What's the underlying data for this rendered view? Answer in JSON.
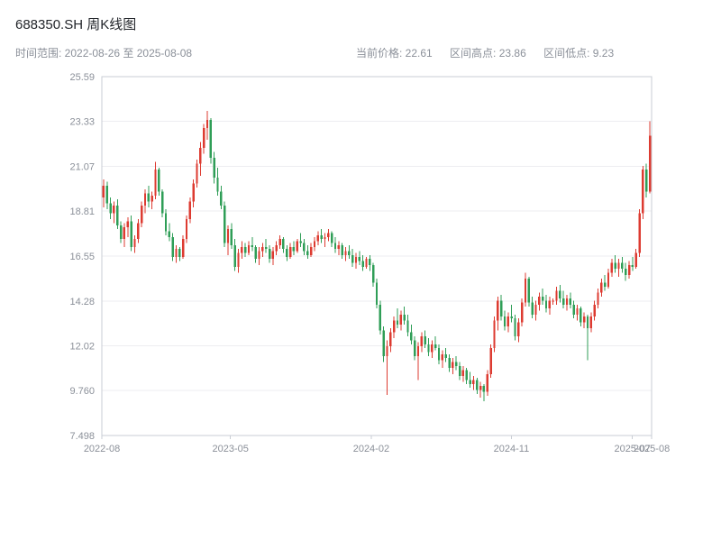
{
  "header": {
    "title": "688350.SH 周K线图",
    "time_range": "时间范围: 2022-08-26 至 2025-08-08",
    "stats": {
      "current": "当前价格: 22.61",
      "high": "区间高点: 23.86",
      "low": "区间低点: 9.23"
    }
  },
  "chart_data": {
    "type": "candlestick",
    "symbol": "688350.SH",
    "period_label": "周K线图",
    "date_start": "2022-08-26",
    "date_end": "2025-08-08",
    "current_price": 22.61,
    "range_high": 23.86,
    "range_low": 9.23,
    "up_color": "#dd3b31",
    "down_color": "#2f9e57",
    "grid_color": "#ededf1",
    "border_color": "#c9cdd4",
    "label_color": "#8b9099",
    "ylim": [
      7.498,
      25.59
    ],
    "y_ticks": [
      7.498,
      9.76,
      12.02,
      14.28,
      16.55,
      18.81,
      21.07,
      23.33,
      25.59
    ],
    "y_tick_labels": [
      "7.498",
      "9.760",
      "12.02",
      "14.28",
      "16.55",
      "18.81",
      "21.07",
      "23.33",
      "25.59"
    ],
    "x_ticks": [
      {
        "label": "2022-08",
        "f": 0.0
      },
      {
        "label": "2023-05",
        "f": 0.234
      },
      {
        "label": "2024-02",
        "f": 0.49
      },
      {
        "label": "2024-11",
        "f": 0.745
      },
      {
        "label": "2025-07",
        "f": 0.965
      },
      {
        "label": "2025-08",
        "f": 1.0
      }
    ],
    "candles": [
      [
        19.5,
        20.4,
        19.0,
        20.1
      ],
      [
        20.1,
        20.3,
        18.9,
        19.2
      ],
      [
        19.2,
        19.5,
        18.4,
        18.7
      ],
      [
        18.7,
        19.3,
        18.2,
        19.1
      ],
      [
        19.1,
        19.4,
        17.9,
        18.1
      ],
      [
        18.1,
        18.3,
        17.2,
        17.4
      ],
      [
        17.4,
        18.2,
        17.0,
        18.0
      ],
      [
        18.0,
        18.5,
        17.5,
        18.3
      ],
      [
        18.3,
        18.6,
        16.8,
        17.0
      ],
      [
        17.0,
        17.6,
        16.7,
        17.4
      ],
      [
        17.4,
        18.4,
        17.2,
        18.2
      ],
      [
        18.2,
        19.3,
        18.0,
        19.1
      ],
      [
        19.1,
        19.9,
        18.7,
        19.7
      ],
      [
        19.7,
        20.1,
        19.0,
        19.3
      ],
      [
        19.3,
        19.8,
        18.9,
        19.6
      ],
      [
        19.6,
        21.3,
        19.4,
        20.9
      ],
      [
        20.9,
        21.0,
        19.6,
        19.8
      ],
      [
        19.8,
        19.9,
        18.5,
        18.7
      ],
      [
        18.7,
        18.9,
        17.6,
        17.8
      ],
      [
        17.8,
        18.2,
        17.3,
        17.5
      ],
      [
        17.5,
        17.7,
        16.3,
        16.5
      ],
      [
        16.5,
        17.1,
        16.2,
        16.9
      ],
      [
        16.9,
        17.0,
        16.3,
        16.5
      ],
      [
        16.5,
        17.6,
        16.4,
        17.4
      ],
      [
        17.4,
        18.6,
        17.2,
        18.4
      ],
      [
        18.4,
        19.5,
        18.2,
        19.3
      ],
      [
        19.3,
        20.4,
        19.0,
        20.2
      ],
      [
        20.2,
        21.4,
        20.0,
        21.2
      ],
      [
        21.2,
        22.3,
        20.6,
        22.0
      ],
      [
        22.0,
        23.2,
        21.7,
        23.0
      ],
      [
        23.0,
        23.86,
        22.4,
        23.4
      ],
      [
        23.4,
        23.5,
        21.2,
        21.5
      ],
      [
        21.5,
        21.8,
        20.2,
        20.5
      ],
      [
        20.5,
        21.0,
        19.6,
        19.8
      ],
      [
        19.8,
        20.1,
        18.9,
        19.1
      ],
      [
        19.1,
        19.3,
        17.0,
        17.2
      ],
      [
        17.2,
        18.1,
        16.6,
        17.9
      ],
      [
        17.9,
        18.2,
        16.9,
        17.1
      ],
      [
        17.1,
        17.4,
        15.8,
        16.0
      ],
      [
        16.0,
        16.9,
        15.7,
        16.7
      ],
      [
        16.7,
        17.3,
        16.4,
        17.0
      ],
      [
        17.0,
        17.2,
        16.5,
        16.7
      ],
      [
        16.7,
        17.3,
        16.6,
        17.1
      ],
      [
        17.1,
        17.5,
        16.8,
        17.0
      ],
      [
        17.0,
        17.1,
        16.2,
        16.4
      ],
      [
        16.4,
        17.0,
        16.1,
        16.8
      ],
      [
        16.8,
        17.2,
        16.5,
        17.0
      ],
      [
        17.0,
        17.4,
        16.7,
        16.9
      ],
      [
        16.9,
        17.1,
        16.2,
        16.4
      ],
      [
        16.4,
        17.0,
        16.1,
        16.8
      ],
      [
        16.8,
        17.3,
        16.6,
        17.1
      ],
      [
        17.1,
        17.6,
        16.9,
        17.4
      ],
      [
        17.4,
        17.5,
        16.7,
        16.9
      ],
      [
        16.9,
        17.1,
        16.3,
        16.5
      ],
      [
        16.5,
        17.2,
        16.4,
        17.0
      ],
      [
        17.0,
        17.3,
        16.6,
        16.8
      ],
      [
        16.8,
        17.4,
        16.7,
        17.3
      ],
      [
        17.3,
        17.7,
        17.0,
        17.2
      ],
      [
        17.2,
        17.4,
        16.6,
        16.8
      ],
      [
        16.8,
        17.1,
        16.4,
        16.6
      ],
      [
        16.6,
        17.2,
        16.5,
        17.0
      ],
      [
        17.0,
        17.5,
        16.8,
        17.3
      ],
      [
        17.3,
        17.8,
        17.1,
        17.6
      ],
      [
        17.6,
        17.9,
        17.2,
        17.4
      ],
      [
        17.4,
        17.7,
        17.0,
        17.5
      ],
      [
        17.5,
        17.9,
        17.3,
        17.7
      ],
      [
        17.7,
        17.8,
        17.0,
        17.2
      ],
      [
        17.2,
        17.5,
        16.7,
        16.9
      ],
      [
        16.9,
        17.3,
        16.6,
        17.1
      ],
      [
        17.1,
        17.2,
        16.4,
        16.6
      ],
      [
        16.6,
        17.0,
        16.3,
        16.8
      ],
      [
        16.8,
        17.1,
        16.4,
        16.6
      ],
      [
        16.6,
        16.9,
        16.0,
        16.2
      ],
      [
        16.2,
        16.7,
        15.9,
        16.5
      ],
      [
        16.5,
        16.8,
        16.1,
        16.3
      ],
      [
        16.3,
        16.6,
        15.8,
        16.0
      ],
      [
        16.0,
        16.5,
        15.9,
        16.4
      ],
      [
        16.4,
        16.6,
        15.8,
        16.1
      ],
      [
        16.1,
        16.2,
        15.0,
        15.2
      ],
      [
        15.2,
        15.4,
        13.9,
        14.1
      ],
      [
        14.1,
        14.3,
        12.6,
        12.8
      ],
      [
        12.8,
        13.0,
        11.2,
        11.5
      ],
      [
        11.5,
        12.3,
        9.55,
        12.0
      ],
      [
        12.0,
        12.9,
        11.7,
        12.7
      ],
      [
        12.7,
        13.5,
        12.4,
        13.3
      ],
      [
        13.3,
        13.9,
        12.9,
        13.1
      ],
      [
        13.1,
        13.8,
        12.8,
        13.6
      ],
      [
        13.6,
        14.0,
        13.1,
        13.3
      ],
      [
        13.3,
        13.6,
        12.5,
        12.7
      ],
      [
        12.7,
        13.1,
        12.1,
        12.3
      ],
      [
        12.3,
        12.5,
        11.3,
        11.5
      ],
      [
        11.5,
        12.2,
        10.3,
        12.0
      ],
      [
        12.0,
        12.7,
        11.7,
        12.5
      ],
      [
        12.5,
        12.8,
        11.9,
        12.1
      ],
      [
        12.1,
        12.4,
        11.5,
        11.7
      ],
      [
        11.7,
        12.3,
        11.4,
        12.1
      ],
      [
        12.1,
        12.5,
        11.8,
        11.9
      ],
      [
        11.9,
        12.1,
        11.1,
        11.3
      ],
      [
        11.3,
        11.8,
        10.9,
        11.6
      ],
      [
        11.6,
        11.9,
        11.2,
        11.4
      ],
      [
        11.4,
        11.6,
        10.7,
        10.9
      ],
      [
        10.9,
        11.4,
        10.6,
        11.2
      ],
      [
        11.2,
        11.5,
        10.8,
        11.0
      ],
      [
        11.0,
        11.2,
        10.3,
        10.5
      ],
      [
        10.5,
        11.0,
        10.2,
        10.8
      ],
      [
        10.8,
        10.9,
        10.1,
        10.3
      ],
      [
        10.3,
        10.7,
        9.9,
        10.1
      ],
      [
        10.1,
        10.5,
        9.8,
        10.3
      ],
      [
        10.3,
        10.4,
        9.6,
        9.8
      ],
      [
        9.8,
        10.2,
        9.4,
        10.0
      ],
      [
        10.0,
        10.1,
        9.23,
        9.7
      ],
      [
        9.7,
        10.8,
        9.5,
        10.6
      ],
      [
        10.6,
        12.1,
        10.4,
        11.9
      ],
      [
        11.9,
        13.5,
        11.7,
        13.3
      ],
      [
        13.3,
        14.5,
        12.8,
        14.3
      ],
      [
        14.3,
        14.6,
        13.3,
        13.5
      ],
      [
        13.5,
        13.8,
        12.8,
        13.0
      ],
      [
        13.0,
        13.7,
        12.7,
        13.5
      ],
      [
        13.5,
        14.1,
        13.2,
        13.4
      ],
      [
        13.4,
        13.6,
        12.3,
        12.5
      ],
      [
        12.5,
        13.4,
        12.2,
        13.2
      ],
      [
        13.2,
        14.4,
        13.0,
        14.2
      ],
      [
        14.2,
        15.7,
        14.0,
        15.4
      ],
      [
        15.4,
        15.5,
        14.0,
        14.2
      ],
      [
        14.2,
        14.5,
        13.4,
        13.6
      ],
      [
        13.6,
        14.3,
        13.3,
        14.1
      ],
      [
        14.1,
        14.7,
        13.8,
        14.5
      ],
      [
        14.5,
        14.9,
        14.1,
        14.3
      ],
      [
        14.3,
        14.6,
        13.7,
        13.9
      ],
      [
        13.9,
        14.5,
        13.6,
        14.3
      ],
      [
        14.3,
        14.4,
        14.1,
        14.3
      ],
      [
        14.3,
        15.0,
        14.1,
        14.8
      ],
      [
        14.8,
        15.1,
        14.2,
        14.4
      ],
      [
        14.4,
        14.8,
        13.9,
        14.1
      ],
      [
        14.1,
        14.6,
        13.8,
        14.4
      ],
      [
        14.4,
        14.7,
        13.9,
        14.1
      ],
      [
        14.1,
        14.3,
        13.4,
        13.6
      ],
      [
        13.6,
        14.1,
        13.3,
        13.9
      ],
      [
        13.9,
        14.0,
        13.0,
        13.2
      ],
      [
        13.2,
        13.7,
        12.9,
        13.5
      ],
      [
        13.5,
        13.6,
        11.3,
        12.9
      ],
      [
        12.9,
        13.7,
        12.7,
        13.5
      ],
      [
        13.5,
        14.3,
        13.3,
        14.1
      ],
      [
        14.1,
        14.9,
        13.9,
        14.7
      ],
      [
        14.7,
        15.4,
        14.5,
        15.2
      ],
      [
        15.2,
        15.6,
        14.8,
        15.0
      ],
      [
        15.0,
        15.9,
        14.9,
        15.7
      ],
      [
        15.7,
        16.4,
        15.5,
        16.2
      ],
      [
        16.2,
        16.6,
        15.7,
        15.9
      ],
      [
        15.9,
        16.4,
        15.5,
        16.2
      ],
      [
        16.2,
        16.5,
        15.7,
        15.9
      ],
      [
        15.9,
        16.2,
        15.3,
        15.6
      ],
      [
        15.6,
        16.3,
        15.4,
        16.1
      ],
      [
        16.1,
        16.5,
        15.8,
        16.0
      ],
      [
        16.0,
        16.9,
        15.9,
        16.7
      ],
      [
        16.7,
        18.9,
        16.5,
        18.7
      ],
      [
        18.7,
        21.1,
        18.4,
        20.9
      ],
      [
        20.9,
        21.2,
        19.5,
        19.8
      ],
      [
        19.8,
        23.33,
        19.7,
        22.61
      ]
    ]
  }
}
